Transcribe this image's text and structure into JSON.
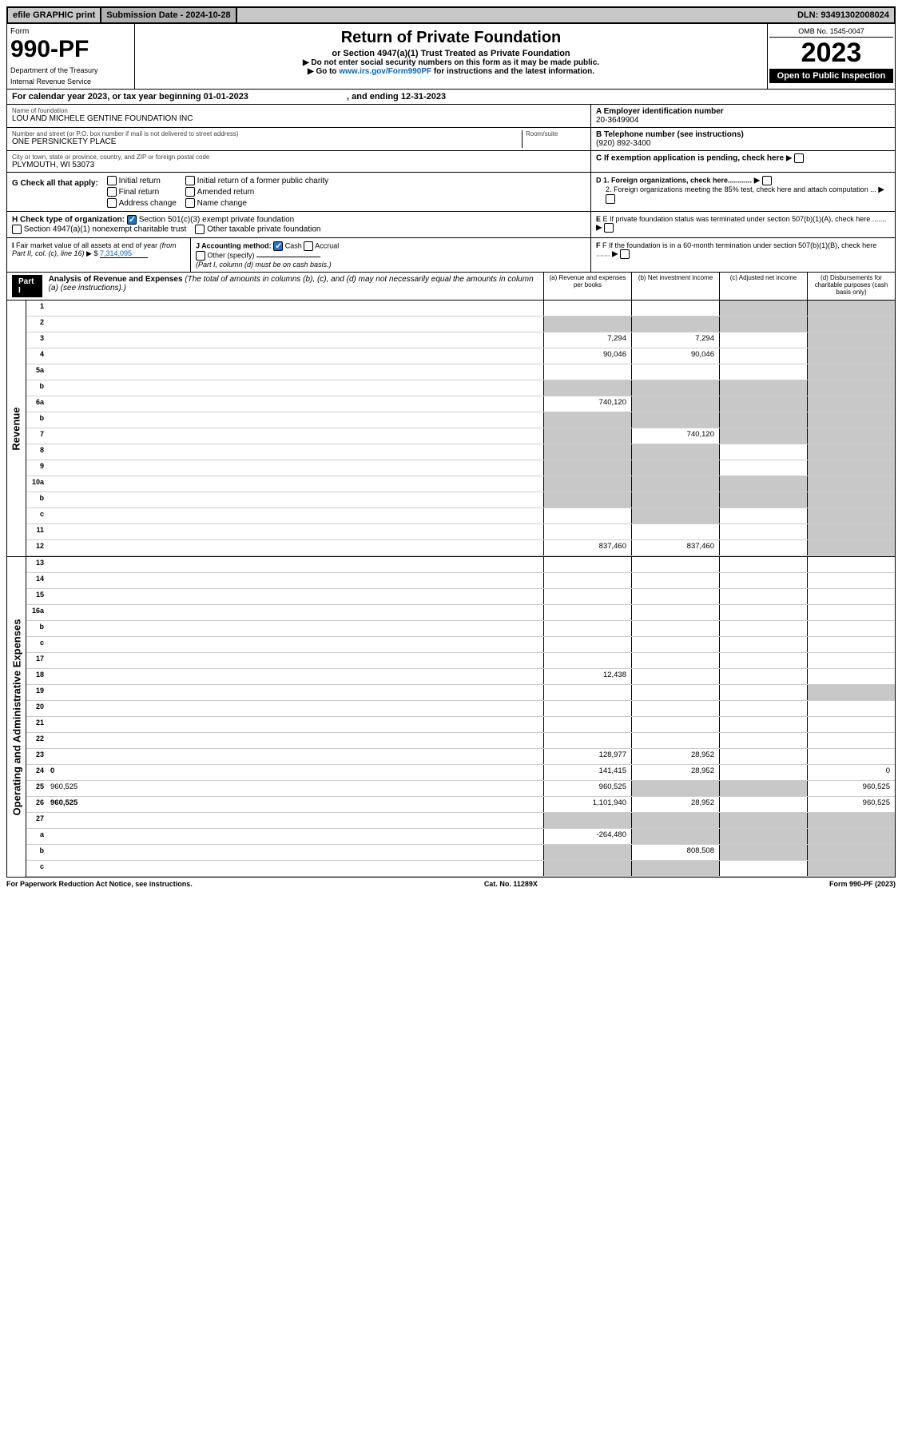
{
  "topbar": {
    "efile": "efile GRAPHIC print",
    "submission_label": "Submission Date - 2024-10-28",
    "dln": "DLN: 93491302008024"
  },
  "header": {
    "form_label": "Form",
    "form_number": "990-PF",
    "dept1": "Department of the Treasury",
    "dept2": "Internal Revenue Service",
    "title": "Return of Private Foundation",
    "subtitle": "or Section 4947(a)(1) Trust Treated as Private Foundation",
    "note1": "▶ Do not enter social security numbers on this form as it may be made public.",
    "note2_pre": "▶ Go to ",
    "note2_link": "www.irs.gov/Form990PF",
    "note2_post": " for instructions and the latest information.",
    "omb": "OMB No. 1545-0047",
    "year": "2023",
    "open": "Open to Public Inspection"
  },
  "calendar": {
    "text_pre": "For calendar year 2023, or tax year beginning ",
    "begin": "01-01-2023",
    "mid": ", and ending ",
    "end": "12-31-2023"
  },
  "foundation": {
    "name_label": "Name of foundation",
    "name": "LOU AND MICHELE GENTINE FOUNDATION INC",
    "street_label": "Number and street (or P.O. box number if mail is not delivered to street address)",
    "street": "ONE PERSNICKETY PLACE",
    "room_label": "Room/suite",
    "city_label": "City or town, state or province, country, and ZIP or foreign postal code",
    "city": "PLYMOUTH, WI  53073",
    "ein_label": "A Employer identification number",
    "ein": "20-3649904",
    "phone_label": "B Telephone number (see instructions)",
    "phone": "(920) 892-3400",
    "c_label": "C If exemption application is pending, check here",
    "d1": "D 1. Foreign organizations, check here............",
    "d2": "2. Foreign organizations meeting the 85% test, check here and attach computation ...",
    "e_label": "E If private foundation status was terminated under section 507(b)(1)(A), check here .......",
    "f_label": "F If the foundation is in a 60-month termination under section 507(b)(1)(B), check here ......."
  },
  "g": {
    "label": "G Check all that apply:",
    "opts": [
      "Initial return",
      "Final return",
      "Address change",
      "Initial return of a former public charity",
      "Amended return",
      "Name change"
    ]
  },
  "h": {
    "label": "H Check type of organization:",
    "opt1": "Section 501(c)(3) exempt private foundation",
    "opt2": "Section 4947(a)(1) nonexempt charitable trust",
    "opt3": "Other taxable private foundation"
  },
  "i": {
    "label": "I Fair market value of all assets at end of year (from Part II, col. (c), line 16) ▶ $",
    "value": "7,314,095"
  },
  "j": {
    "label": "J Accounting method:",
    "cash": "Cash",
    "accrual": "Accrual",
    "other": "Other (specify)",
    "note": "(Part I, column (d) must be on cash basis.)"
  },
  "part1": {
    "label": "Part I",
    "title": "Analysis of Revenue and Expenses",
    "title_note": "(The total of amounts in columns (b), (c), and (d) may not necessarily equal the amounts in column (a) (see instructions).)",
    "col_a": "(a) Revenue and expenses per books",
    "col_b": "(b) Net investment income",
    "col_c": "(c) Adjusted net income",
    "col_d": "(d) Disbursements for charitable purposes (cash basis only)"
  },
  "sections": {
    "revenue": "Revenue",
    "expenses": "Operating and Administrative Expenses"
  },
  "lines": [
    {
      "n": "1",
      "d": "",
      "a": "",
      "b": "",
      "c": "",
      "shade_c": true,
      "shade_d": true
    },
    {
      "n": "2",
      "d": "",
      "a": "",
      "b": "",
      "c": "",
      "shade_a": true,
      "shade_b": true,
      "shade_c": true,
      "shade_d": true
    },
    {
      "n": "3",
      "d": "",
      "a": "7,294",
      "b": "7,294",
      "c": "",
      "shade_d": true
    },
    {
      "n": "4",
      "d": "",
      "a": "90,046",
      "b": "90,046",
      "c": "",
      "shade_d": true
    },
    {
      "n": "5a",
      "d": "",
      "a": "",
      "b": "",
      "c": "",
      "shade_d": true
    },
    {
      "n": "b",
      "d": "",
      "a": "",
      "b": "",
      "c": "",
      "shade_a": true,
      "shade_b": true,
      "shade_c": true,
      "shade_d": true
    },
    {
      "n": "6a",
      "d": "",
      "a": "740,120",
      "b": "",
      "c": "",
      "shade_b": true,
      "shade_c": true,
      "shade_d": true
    },
    {
      "n": "b",
      "d": "",
      "a": "",
      "b": "",
      "c": "",
      "shade_a": true,
      "shade_b": true,
      "shade_c": true,
      "shade_d": true
    },
    {
      "n": "7",
      "d": "",
      "a": "",
      "b": "740,120",
      "c": "",
      "shade_a": true,
      "shade_c": true,
      "shade_d": true
    },
    {
      "n": "8",
      "d": "",
      "a": "",
      "b": "",
      "c": "",
      "shade_a": true,
      "shade_b": true,
      "shade_d": true
    },
    {
      "n": "9",
      "d": "",
      "a": "",
      "b": "",
      "c": "",
      "shade_a": true,
      "shade_b": true,
      "shade_d": true
    },
    {
      "n": "10a",
      "d": "",
      "a": "",
      "b": "",
      "c": "",
      "shade_a": true,
      "shade_b": true,
      "shade_c": true,
      "shade_d": true
    },
    {
      "n": "b",
      "d": "",
      "a": "",
      "b": "",
      "c": "",
      "shade_a": true,
      "shade_b": true,
      "shade_c": true,
      "shade_d": true
    },
    {
      "n": "c",
      "d": "",
      "a": "",
      "b": "",
      "c": "",
      "shade_b": true,
      "shade_d": true
    },
    {
      "n": "11",
      "d": "",
      "a": "",
      "b": "",
      "c": "",
      "shade_d": true
    },
    {
      "n": "12",
      "d": "",
      "a": "837,460",
      "b": "837,460",
      "c": "",
      "bold": true,
      "shade_d": true
    }
  ],
  "exp_lines": [
    {
      "n": "13",
      "d": "",
      "a": "",
      "b": "",
      "c": ""
    },
    {
      "n": "14",
      "d": "",
      "a": "",
      "b": "",
      "c": ""
    },
    {
      "n": "15",
      "d": "",
      "a": "",
      "b": "",
      "c": ""
    },
    {
      "n": "16a",
      "d": "",
      "a": "",
      "b": "",
      "c": ""
    },
    {
      "n": "b",
      "d": "",
      "a": "",
      "b": "",
      "c": ""
    },
    {
      "n": "c",
      "d": "",
      "a": "",
      "b": "",
      "c": ""
    },
    {
      "n": "17",
      "d": "",
      "a": "",
      "b": "",
      "c": ""
    },
    {
      "n": "18",
      "d": "",
      "a": "12,438",
      "b": "",
      "c": ""
    },
    {
      "n": "19",
      "d": "",
      "a": "",
      "b": "",
      "c": "",
      "shade_d": true
    },
    {
      "n": "20",
      "d": "",
      "a": "",
      "b": "",
      "c": ""
    },
    {
      "n": "21",
      "d": "",
      "a": "",
      "b": "",
      "c": ""
    },
    {
      "n": "22",
      "d": "",
      "a": "",
      "b": "",
      "c": ""
    },
    {
      "n": "23",
      "d": "",
      "a": "128,977",
      "b": "28,952",
      "c": ""
    },
    {
      "n": "24",
      "d": "0",
      "a": "141,415",
      "b": "28,952",
      "c": "",
      "bold": true
    },
    {
      "n": "25",
      "d": "960,525",
      "a": "960,525",
      "b": "",
      "c": "",
      "shade_b": true,
      "shade_c": true
    },
    {
      "n": "26",
      "d": "960,525",
      "a": "1,101,940",
      "b": "28,952",
      "c": "",
      "bold": true
    },
    {
      "n": "27",
      "d": "",
      "a": "",
      "b": "",
      "c": "",
      "shade_a": true,
      "shade_b": true,
      "shade_c": true,
      "shade_d": true
    },
    {
      "n": "a",
      "d": "",
      "a": "-264,480",
      "b": "",
      "c": "",
      "bold": true,
      "shade_b": true,
      "shade_c": true,
      "shade_d": true
    },
    {
      "n": "b",
      "d": "",
      "a": "",
      "b": "808,508",
      "c": "",
      "bold": true,
      "shade_a": true,
      "shade_c": true,
      "shade_d": true
    },
    {
      "n": "c",
      "d": "",
      "a": "",
      "b": "",
      "c": "",
      "bold": true,
      "shade_a": true,
      "shade_b": true,
      "shade_d": true
    }
  ],
  "footer": {
    "left": "For Paperwork Reduction Act Notice, see instructions.",
    "mid": "Cat. No. 11289X",
    "right": "Form 990-PF (2023)"
  }
}
